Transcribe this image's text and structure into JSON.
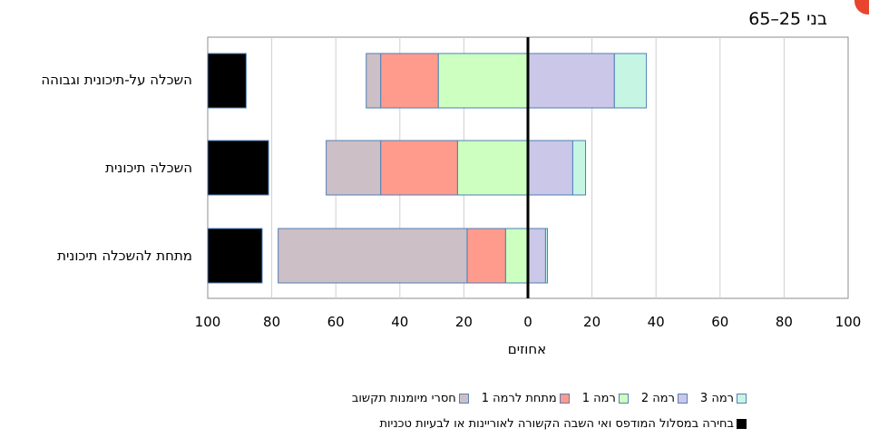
{
  "subtitle": "בני 25–65",
  "colors": {
    "level3": "#c6f5e4",
    "level2": "#cbc7e8",
    "level1": "#ccffc0",
    "below1": "#ff9b8c",
    "lacking": "#cdbfc6",
    "skipped": "#000000",
    "bar_border": "#4f7fb5",
    "accent_dot": "#e8452f"
  },
  "chart_data": {
    "type": "bar",
    "orientation": "horizontal-diverging",
    "xlabel": "אחוזים",
    "xlim": [
      -100,
      100
    ],
    "x_ticks": [
      -100,
      -80,
      -60,
      -40,
      -20,
      0,
      20,
      40,
      60,
      80,
      100
    ],
    "x_tick_labels": [
      "100",
      "80",
      "60",
      "40",
      "20",
      "0",
      "20",
      "40",
      "60",
      "80",
      "100"
    ],
    "grid": true,
    "categories": [
      "השכלה על-תיכונית וגבוהה",
      "השכלה תיכונית",
      "מתחת להשכלה תיכונית"
    ],
    "series": [
      {
        "key": "level3",
        "name": "רמה 3",
        "side": "right",
        "values": [
          10,
          4,
          0.6
        ]
      },
      {
        "key": "level2",
        "name": "רמה 2",
        "side": "right",
        "values": [
          27,
          14,
          5.5
        ]
      },
      {
        "key": "level1",
        "name": "רמה 1",
        "side": "left",
        "values": [
          28,
          22,
          7
        ]
      },
      {
        "key": "below1",
        "name": "מתחת לרמה 1",
        "side": "left",
        "values": [
          18,
          24,
          12
        ]
      },
      {
        "key": "lacking",
        "name": "חסרי מיומנות תקשוב",
        "side": "left",
        "values": [
          4.5,
          17,
          59
        ]
      },
      {
        "key": "skipped",
        "name": "בחירה במסלול המודפס ואי השבה הקשורה לאוריינות או לבעיות טכניות",
        "side": "anchored-left",
        "values": [
          12,
          19,
          17
        ]
      }
    ],
    "legend_position": "bottom"
  }
}
